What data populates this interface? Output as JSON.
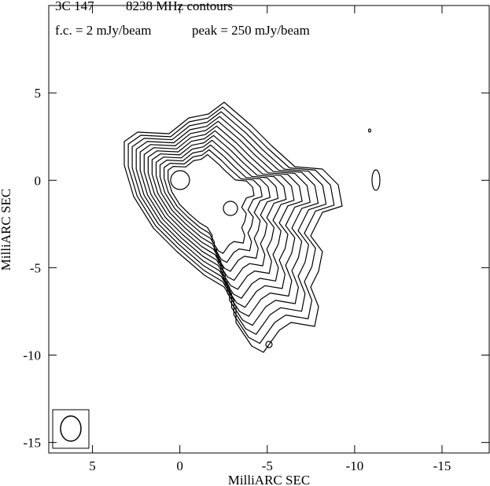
{
  "chart_data": {
    "type": "contour",
    "title": "3C 147",
    "subtitle": "8238 MHz contours",
    "annotations": [
      "f.c. = 2 mJy/beam",
      "peak = 250 mJy/beam"
    ],
    "xlabel": "MilliARC SEC",
    "ylabel": "MilliARC SEC",
    "xlim": [
      7.5,
      -17.7
    ],
    "ylim": [
      -15.6,
      10
    ],
    "xticks": [
      5,
      0,
      -5,
      -10,
      -15
    ],
    "yticks": [
      5,
      0,
      -5,
      -10,
      -15
    ],
    "color": "#000000"
  }
}
